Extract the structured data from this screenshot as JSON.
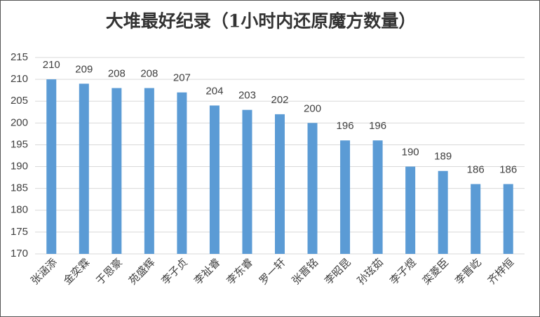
{
  "chart_data": {
    "type": "bar",
    "title": "大堆最好纪录（1小时内还原魔方数量）",
    "categories": [
      "张涵添",
      "金奕霖",
      "于恩豪",
      "苑盛辉",
      "李子贞",
      "李祉睿",
      "李东睿",
      "罗一轩",
      "张晋铭",
      "李昭昆",
      "孙玹茹",
      "李子煜",
      "栾菱臣",
      "李晋屹",
      "齐梓恒"
    ],
    "values": [
      210,
      209,
      208,
      208,
      207,
      204,
      203,
      202,
      200,
      196,
      196,
      190,
      189,
      186,
      186
    ],
    "color": "#5b9bd5",
    "ylim": [
      170,
      215
    ],
    "yticks": [
      170,
      175,
      180,
      185,
      190,
      195,
      200,
      205,
      210,
      215
    ],
    "grid": true
  }
}
